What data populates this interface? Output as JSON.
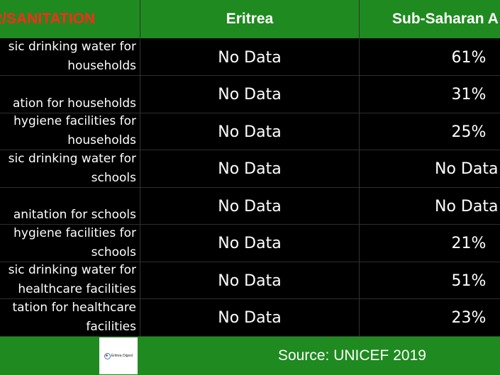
{
  "header": {
    "indicator": "R/SANITATION",
    "eritrea": "Eritrea",
    "ssa": "Sub-Saharan A"
  },
  "rows": [
    {
      "indicator_lines": [
        "sic drinking water for",
        "households"
      ],
      "eritrea": "No Data",
      "ssa": "61%"
    },
    {
      "indicator_lines": [
        "ation for households"
      ],
      "eritrea": "No Data",
      "ssa": "31%"
    },
    {
      "indicator_lines": [
        "hygiene facilities for",
        "households"
      ],
      "eritrea": "No Data",
      "ssa": "25%"
    },
    {
      "indicator_lines": [
        "sic drinking water for",
        "schools"
      ],
      "eritrea": "No Data",
      "ssa": "No Data"
    },
    {
      "indicator_lines": [
        "anitation for schools"
      ],
      "eritrea": "No Data",
      "ssa": "No Data"
    },
    {
      "indicator_lines": [
        "hygiene facilities for",
        "schools"
      ],
      "eritrea": "No Data",
      "ssa": "21%"
    },
    {
      "indicator_lines": [
        "sic drinking water for",
        "healthcare facilities"
      ],
      "eritrea": "No Data",
      "ssa": "51%"
    },
    {
      "indicator_lines": [
        "tation for healthcare",
        "facilities"
      ],
      "eritrea": "No Data",
      "ssa": "23%"
    }
  ],
  "footer": {
    "logo_text": "Eritrea Digest",
    "source": "Source: UNICEF 2019"
  },
  "colors": {
    "green": "#1f8a1f",
    "red_header": "#ff2a1a",
    "background": "#000000"
  }
}
